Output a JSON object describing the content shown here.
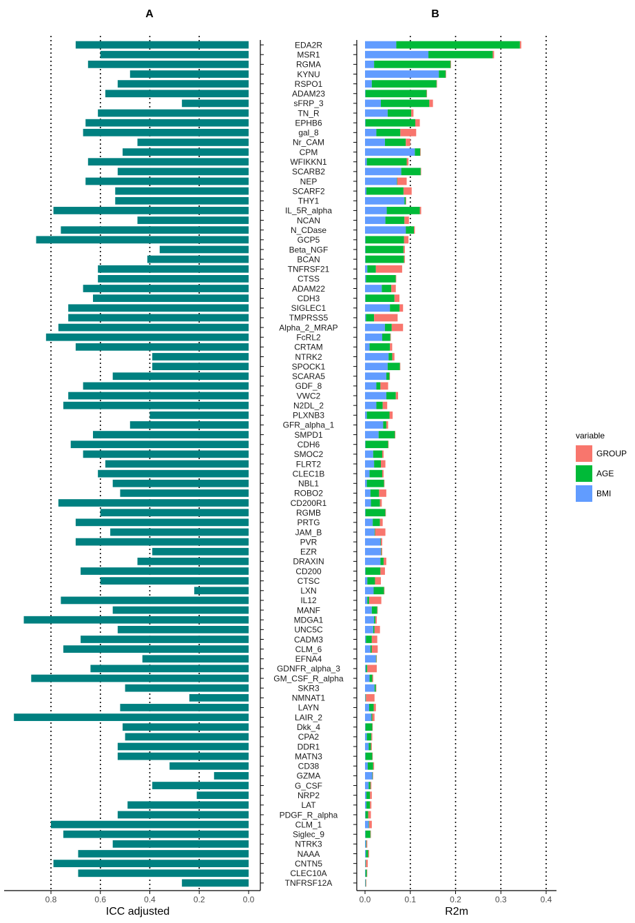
{
  "chart_data": [
    {
      "panel": "A",
      "type": "bar",
      "orientation": "horizontal",
      "direction": "reversed-x",
      "title": "A",
      "xlabel": "ICC adjusted",
      "ylabel": "",
      "xlim": [
        0,
        0.95
      ],
      "xticks": [
        "0.8",
        "0.6",
        "0.4",
        "0.2",
        "0.0"
      ],
      "xtick_values": [
        0.8,
        0.6,
        0.4,
        0.2,
        0.0
      ],
      "color": "#008080",
      "categories": [
        "EDA2R",
        "MSR1",
        "RGMA",
        "KYNU",
        "RSPO1",
        "ADAM23",
        "sFRP_3",
        "TN_R",
        "EPHB6",
        "gal_8",
        "Nr_CAM",
        "CPM",
        "WFIKKN1",
        "SCARB2",
        "NEP",
        "SCARF2",
        "THY1",
        "IL_5R_alpha",
        "NCAN",
        "N_CDase",
        "GCP5",
        "Beta_NGF",
        "BCAN",
        "TNFRSF21",
        "CTSS",
        "ADAM22",
        "CDH3",
        "SIGLEC1",
        "TMPRSS5",
        "Alpha_2_MRAP",
        "FcRL2",
        "CRTAM",
        "NTRK2",
        "SPOCK1",
        "SCARA5",
        "GDF_8",
        "VWC2",
        "N2DL_2",
        "PLXNB3",
        "GFR_alpha_1",
        "SMPD1",
        "CDH6",
        "SMOC2",
        "FLRT2",
        "CLEC1B",
        "NBL1",
        "ROBO2",
        "CD200R1",
        "RGMB",
        "PRTG",
        "JAM_B",
        "PVR",
        "EZR",
        "DRAXIN",
        "CD200",
        "CTSC",
        "LXN",
        "IL12",
        "MANF",
        "MDGA1",
        "UNC5C",
        "CADM3",
        "CLM_6",
        "EFNA4",
        "GDNFR_alpha_3",
        "GM_CSF_R_alpha",
        "SKR3",
        "NMNAT1",
        "LAYN",
        "LAIR_2",
        "Dkk_4",
        "CPA2",
        "DDR1",
        "MATN3",
        "CD38",
        "GZMA",
        "G_CSF",
        "NRP2",
        "LAT",
        "PDGF_R_alpha",
        "CLM_1",
        "Siglec_9",
        "NTRK3",
        "NAAA",
        "CNTN5",
        "CLEC10A",
        "TNFRSF12A"
      ],
      "values": [
        0.7,
        0.6,
        0.65,
        0.48,
        0.53,
        0.58,
        0.27,
        0.61,
        0.66,
        0.67,
        0.45,
        0.51,
        0.65,
        0.53,
        0.66,
        0.54,
        0.54,
        0.79,
        0.45,
        0.76,
        0.86,
        0.36,
        0.41,
        0.61,
        0.61,
        0.67,
        0.63,
        0.73,
        0.73,
        0.77,
        0.82,
        0.7,
        0.39,
        0.39,
        0.55,
        0.67,
        0.73,
        0.75,
        0.4,
        0.48,
        0.63,
        0.72,
        0.67,
        0.58,
        0.61,
        0.55,
        0.52,
        0.77,
        0.6,
        0.7,
        0.56,
        0.7,
        0.39,
        0.45,
        0.68,
        0.6,
        0.22,
        0.76,
        0.55,
        0.91,
        0.53,
        0.68,
        0.75,
        0.43,
        0.64,
        0.88,
        0.5,
        0.24,
        0.52,
        0.95,
        0.51,
        0.5,
        0.53,
        0.53,
        0.32,
        0.14,
        0.39,
        0.21,
        0.49,
        0.53,
        0.8,
        0.75,
        0.55,
        0.69,
        0.79,
        0.69,
        0.27
      ]
    },
    {
      "panel": "B",
      "type": "bar",
      "orientation": "horizontal",
      "stacked": true,
      "title": "B",
      "xlabel": "R2m",
      "ylabel": "",
      "xlim": [
        0,
        0.4
      ],
      "xticks": [
        "0.0",
        "0.1",
        "0.2",
        "0.3",
        "0.4"
      ],
      "xtick_values": [
        0.0,
        0.1,
        0.2,
        0.3,
        0.4
      ],
      "categories_ref": "same as panel A",
      "legend": {
        "title": "variable",
        "position": "right",
        "entries": [
          {
            "name": "GROUP",
            "color": "#F8766D"
          },
          {
            "name": "AGE",
            "color": "#00BA38"
          },
          {
            "name": "BMI",
            "color": "#619CFF"
          }
        ]
      },
      "series": [
        {
          "name": "BMI",
          "color": "#619CFF",
          "values": [
            0.069,
            0.14,
            0.02,
            0.163,
            0.015,
            0.001,
            0.035,
            0.05,
            0.001,
            0.025,
            0.044,
            0.11,
            0.004,
            0.08,
            0.07,
            0.003,
            0.087,
            0.048,
            0.045,
            0.09,
            0.001,
            0.001,
            0.001,
            0.005,
            0.002,
            0.037,
            0.001,
            0.055,
            0.002,
            0.044,
            0.038,
            0.01,
            0.052,
            0.05,
            0.047,
            0.025,
            0.047,
            0.025,
            0.004,
            0.04,
            0.03,
            0.001,
            0.018,
            0.02,
            0.01,
            0.004,
            0.012,
            0.013,
            0.001,
            0.017,
            0.021,
            0.034,
            0.035,
            0.034,
            0.001,
            0.005,
            0.019,
            0.005,
            0.015,
            0.02,
            0.018,
            0.002,
            0.012,
            0.024,
            0.002,
            0.01,
            0.021,
            0.001,
            0.009,
            0.014,
            0.001,
            0.004,
            0.008,
            0.001,
            0.006,
            0.016,
            0.008,
            0.003,
            0.003,
            0.001,
            0.008,
            0.001,
            0.002,
            0.002,
            0.001,
            0.001,
            0.001
          ]
        },
        {
          "name": "AGE",
          "color": "#00BA38",
          "values": [
            0.273,
            0.142,
            0.169,
            0.015,
            0.143,
            0.135,
            0.107,
            0.052,
            0.11,
            0.053,
            0.046,
            0.012,
            0.088,
            0.043,
            0.001,
            0.082,
            0.003,
            0.073,
            0.042,
            0.018,
            0.085,
            0.084,
            0.085,
            0.019,
            0.066,
            0.021,
            0.064,
            0.021,
            0.018,
            0.015,
            0.018,
            0.045,
            0.008,
            0.027,
            0.007,
            0.009,
            0.021,
            0.014,
            0.05,
            0.007,
            0.036,
            0.05,
            0.02,
            0.015,
            0.028,
            0.038,
            0.019,
            0.02,
            0.044,
            0.016,
            0.001,
            0.001,
            0.001,
            0.007,
            0.033,
            0.017,
            0.023,
            0.004,
            0.012,
            0.003,
            0.003,
            0.013,
            0.003,
            0.001,
            0.003,
            0.006,
            0.003,
            0.001,
            0.01,
            0.002,
            0.015,
            0.01,
            0.005,
            0.015,
            0.012,
            0.001,
            0.004,
            0.008,
            0.008,
            0.006,
            0.001,
            0.011,
            0.001,
            0.005,
            0.001,
            0.003,
            0.001
          ]
        },
        {
          "name": "GROUP",
          "color": "#F8766D",
          "values": [
            0.003,
            0.003,
            0.001,
            0.001,
            0.001,
            0.001,
            0.008,
            0.005,
            0.01,
            0.035,
            0.01,
            0.001,
            0.004,
            0.001,
            0.021,
            0.018,
            0.001,
            0.003,
            0.01,
            0.002,
            0.01,
            0.003,
            0.002,
            0.058,
            0.001,
            0.01,
            0.011,
            0.008,
            0.052,
            0.025,
            0.001,
            0.005,
            0.005,
            0.001,
            0.001,
            0.017,
            0.005,
            0.01,
            0.007,
            0.004,
            0.001,
            0.001,
            0.003,
            0.01,
            0.003,
            0.001,
            0.016,
            0.004,
            0.001,
            0.006,
            0.023,
            0.003,
            0.002,
            0.006,
            0.01,
            0.013,
            0.001,
            0.027,
            0.001,
            0.003,
            0.012,
            0.012,
            0.013,
            0.001,
            0.021,
            0.002,
            0.001,
            0.019,
            0.005,
            0.005,
            0.001,
            0.002,
            0.002,
            0.001,
            0.002,
            0.001,
            0.002,
            0.004,
            0.003,
            0.006,
            0.006,
            0.001,
            0.002,
            0.002,
            0.004,
            0.001,
            0.001
          ]
        }
      ]
    }
  ]
}
